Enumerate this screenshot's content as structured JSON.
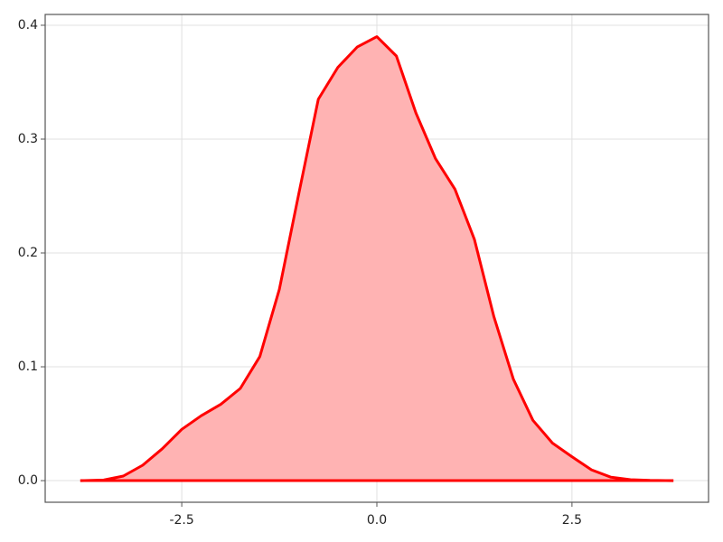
{
  "chart_data": {
    "type": "area",
    "x": [
      -3.8,
      -3.5,
      -3.25,
      -3.0,
      -2.75,
      -2.5,
      -2.25,
      -2.0,
      -1.75,
      -1.5,
      -1.25,
      -1.0,
      -0.75,
      -0.5,
      -0.25,
      0,
      0.25,
      0.5,
      0.75,
      1.0,
      1.25,
      1.5,
      1.75,
      2.0,
      2.25,
      2.5,
      2.75,
      3.0,
      3.25,
      3.5,
      3.8
    ],
    "values": [
      0,
      0.0005,
      0.004,
      0.0135,
      0.028,
      0.045,
      0.057,
      0.067,
      0.081,
      0.109,
      0.168,
      0.252,
      0.335,
      0.363,
      0.381,
      0.39,
      0.373,
      0.323,
      0.283,
      0.256,
      0.212,
      0.144,
      0.089,
      0.053,
      0.033,
      0.021,
      0.0095,
      0.003,
      0.0008,
      0.0002,
      0
    ],
    "color": "#ff0000",
    "fill_color": "#ffb3b3",
    "xlim": [
      -4.25,
      4.25
    ],
    "xticks": [
      -2.5,
      {
        "value": 0,
        "label": "0.0"
      },
      2.5
    ],
    "ylim": [
      -0.019,
      0.4095
    ],
    "yticks": [
      {
        "value": 0,
        "label": "0.0"
      },
      0.1,
      0.2,
      0.3,
      0.4
    ],
    "grid": true
  }
}
